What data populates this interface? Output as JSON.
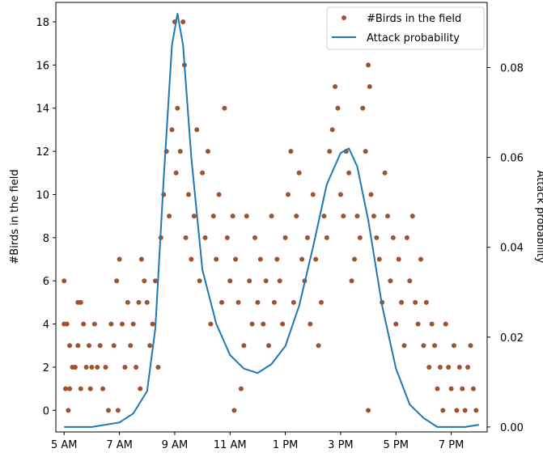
{
  "chart_data": {
    "type": "scatter",
    "x_tick_labels": [
      "5 AM",
      "7 AM",
      "9 AM",
      "11 AM",
      "1 PM",
      "3 PM",
      "5 PM",
      "7 PM"
    ],
    "x_tick_hours": [
      5,
      7,
      9,
      11,
      13,
      15,
      17,
      19
    ],
    "xlim": [
      4.7,
      20.3
    ],
    "ylabel_left": "#Birds in the field",
    "ylabel_right": "Attack probability",
    "y_left_ticks": [
      0,
      2,
      4,
      6,
      8,
      10,
      12,
      14,
      16,
      18
    ],
    "y_left_lim": [
      -1,
      18.9
    ],
    "y_right_ticks": [
      0.0,
      0.02,
      0.04,
      0.06,
      0.08
    ],
    "y_right_tick_labels": [
      "0.00",
      "0.02",
      "0.04",
      "0.06",
      "0.08"
    ],
    "y_right_lim": [
      -0.0011,
      0.0945
    ],
    "legend_position": "top-right",
    "series": [
      {
        "name": "#Birds in the field",
        "kind": "scatter",
        "color": "#a0522d",
        "points": [
          [
            5.0,
            6
          ],
          [
            5.0,
            4
          ],
          [
            5.1,
            4
          ],
          [
            5.2,
            3
          ],
          [
            5.3,
            2
          ],
          [
            5.05,
            1
          ],
          [
            5.2,
            1
          ],
          [
            5.15,
            0
          ],
          [
            5.4,
            2
          ],
          [
            5.5,
            5
          ],
          [
            5.6,
            5
          ],
          [
            5.5,
            3
          ],
          [
            5.6,
            1
          ],
          [
            5.7,
            4
          ],
          [
            5.8,
            2
          ],
          [
            5.9,
            3
          ],
          [
            5.95,
            1
          ],
          [
            6.0,
            2
          ],
          [
            6.1,
            4
          ],
          [
            6.2,
            2
          ],
          [
            6.3,
            3
          ],
          [
            6.4,
            1
          ],
          [
            6.5,
            2
          ],
          [
            6.6,
            0
          ],
          [
            6.7,
            4
          ],
          [
            6.8,
            3
          ],
          [
            6.9,
            6
          ],
          [
            7.0,
            7
          ],
          [
            6.95,
            0
          ],
          [
            7.1,
            4
          ],
          [
            7.2,
            2
          ],
          [
            7.3,
            5
          ],
          [
            7.4,
            3
          ],
          [
            7.5,
            4
          ],
          [
            7.6,
            2
          ],
          [
            7.7,
            5
          ],
          [
            7.8,
            7
          ],
          [
            7.9,
            6
          ],
          [
            8.0,
            5
          ],
          [
            8.1,
            3
          ],
          [
            8.2,
            4
          ],
          [
            8.3,
            6
          ],
          [
            7.75,
            1
          ],
          [
            8.4,
            2
          ],
          [
            8.5,
            8
          ],
          [
            8.6,
            10
          ],
          [
            8.7,
            12
          ],
          [
            8.8,
            9
          ],
          [
            8.9,
            13
          ],
          [
            9.0,
            18
          ],
          [
            9.05,
            11
          ],
          [
            9.1,
            14
          ],
          [
            9.2,
            12
          ],
          [
            9.3,
            18
          ],
          [
            9.35,
            16
          ],
          [
            9.4,
            8
          ],
          [
            9.5,
            10
          ],
          [
            9.6,
            7
          ],
          [
            9.7,
            9
          ],
          [
            9.8,
            13
          ],
          [
            9.9,
            6
          ],
          [
            10.0,
            11
          ],
          [
            10.1,
            8
          ],
          [
            10.2,
            12
          ],
          [
            10.3,
            4
          ],
          [
            10.4,
            9
          ],
          [
            10.5,
            7
          ],
          [
            10.6,
            10
          ],
          [
            10.7,
            5
          ],
          [
            10.8,
            14
          ],
          [
            10.9,
            8
          ],
          [
            11.0,
            6
          ],
          [
            11.1,
            9
          ],
          [
            11.2,
            7
          ],
          [
            11.3,
            5
          ],
          [
            11.15,
            0
          ],
          [
            11.4,
            1
          ],
          [
            11.5,
            3
          ],
          [
            11.6,
            9
          ],
          [
            11.7,
            6
          ],
          [
            11.8,
            4
          ],
          [
            11.9,
            8
          ],
          [
            12.0,
            5
          ],
          [
            12.1,
            7
          ],
          [
            12.2,
            4
          ],
          [
            12.3,
            6
          ],
          [
            12.4,
            3
          ],
          [
            12.5,
            9
          ],
          [
            12.6,
            5
          ],
          [
            12.7,
            7
          ],
          [
            12.8,
            6
          ],
          [
            12.9,
            4
          ],
          [
            13.0,
            8
          ],
          [
            13.1,
            10
          ],
          [
            13.2,
            12
          ],
          [
            13.3,
            5
          ],
          [
            13.4,
            9
          ],
          [
            13.5,
            11
          ],
          [
            13.6,
            7
          ],
          [
            13.7,
            6
          ],
          [
            13.8,
            8
          ],
          [
            13.9,
            4
          ],
          [
            14.0,
            10
          ],
          [
            14.1,
            7
          ],
          [
            14.2,
            3
          ],
          [
            14.3,
            5
          ],
          [
            14.4,
            9
          ],
          [
            14.5,
            8
          ],
          [
            14.6,
            12
          ],
          [
            14.7,
            13
          ],
          [
            14.8,
            15
          ],
          [
            14.9,
            14
          ],
          [
            15.0,
            10
          ],
          [
            15.1,
            9
          ],
          [
            15.2,
            12
          ],
          [
            15.3,
            11
          ],
          [
            15.4,
            6
          ],
          [
            15.5,
            7
          ],
          [
            15.6,
            9
          ],
          [
            15.7,
            8
          ],
          [
            15.8,
            14
          ],
          [
            15.9,
            12
          ],
          [
            16.0,
            16
          ],
          [
            16.05,
            15
          ],
          [
            16.1,
            10
          ],
          [
            16.2,
            9
          ],
          [
            16.0,
            0
          ],
          [
            16.3,
            8
          ],
          [
            16.4,
            7
          ],
          [
            16.5,
            5
          ],
          [
            16.6,
            11
          ],
          [
            16.7,
            9
          ],
          [
            16.8,
            6
          ],
          [
            16.9,
            8
          ],
          [
            17.0,
            4
          ],
          [
            17.1,
            7
          ],
          [
            17.2,
            5
          ],
          [
            17.3,
            3
          ],
          [
            17.4,
            8
          ],
          [
            17.5,
            6
          ],
          [
            17.6,
            9
          ],
          [
            17.7,
            5
          ],
          [
            17.8,
            4
          ],
          [
            17.9,
            7
          ],
          [
            18.0,
            3
          ],
          [
            18.1,
            5
          ],
          [
            18.2,
            2
          ],
          [
            18.3,
            4
          ],
          [
            18.4,
            3
          ],
          [
            18.5,
            1
          ],
          [
            18.6,
            2
          ],
          [
            18.7,
            0
          ],
          [
            18.8,
            4
          ],
          [
            18.9,
            2
          ],
          [
            19.0,
            1
          ],
          [
            19.1,
            3
          ],
          [
            19.2,
            0
          ],
          [
            19.3,
            2
          ],
          [
            19.4,
            1
          ],
          [
            19.5,
            0
          ],
          [
            19.6,
            2
          ],
          [
            19.7,
            3
          ],
          [
            19.8,
            1
          ],
          [
            19.9,
            0
          ]
        ]
      },
      {
        "name": "Attack probability",
        "kind": "line",
        "color": "#1f77b4",
        "axis": "right",
        "points": [
          [
            5.0,
            0.0
          ],
          [
            6.0,
            0.0
          ],
          [
            7.0,
            0.001
          ],
          [
            7.5,
            0.003
          ],
          [
            8.0,
            0.008
          ],
          [
            8.3,
            0.022
          ],
          [
            8.6,
            0.055
          ],
          [
            8.9,
            0.085
          ],
          [
            9.1,
            0.092
          ],
          [
            9.3,
            0.085
          ],
          [
            9.6,
            0.06
          ],
          [
            10.0,
            0.035
          ],
          [
            10.5,
            0.023
          ],
          [
            11.0,
            0.016
          ],
          [
            11.5,
            0.013
          ],
          [
            12.0,
            0.012
          ],
          [
            12.5,
            0.014
          ],
          [
            13.0,
            0.018
          ],
          [
            13.5,
            0.027
          ],
          [
            14.0,
            0.04
          ],
          [
            14.5,
            0.054
          ],
          [
            15.0,
            0.061
          ],
          [
            15.3,
            0.062
          ],
          [
            15.6,
            0.058
          ],
          [
            16.0,
            0.046
          ],
          [
            16.5,
            0.027
          ],
          [
            17.0,
            0.013
          ],
          [
            17.5,
            0.005
          ],
          [
            18.0,
            0.002
          ],
          [
            18.5,
            0.0
          ],
          [
            19.5,
            0.0
          ],
          [
            20.0,
            0.0005
          ]
        ]
      }
    ]
  }
}
